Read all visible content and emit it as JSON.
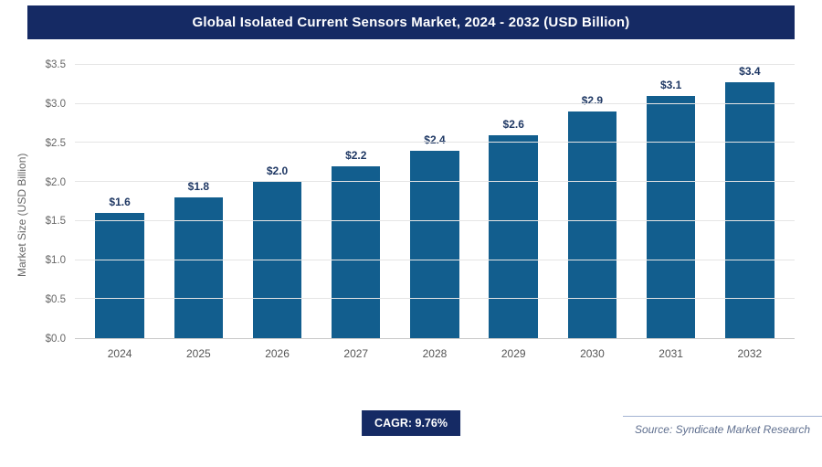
{
  "header": {
    "title": "Global Isolated Current Sensors Market, 2024 - 2032 (USD Billion)"
  },
  "chart_data": {
    "type": "bar",
    "title": "Global Isolated Current Sensors Market, 2024 - 2032 (USD Billion)",
    "categories": [
      "2024",
      "2025",
      "2026",
      "2027",
      "2028",
      "2029",
      "2030",
      "2031",
      "2032"
    ],
    "values": [
      1.6,
      1.8,
      2.0,
      2.2,
      2.4,
      2.6,
      2.9,
      3.1,
      3.4
    ],
    "value_labels": [
      "$1.6",
      "$1.8",
      "$2.0",
      "$2.2",
      "$2.4",
      "$2.6",
      "$2.9",
      "$3.1",
      "$3.4"
    ],
    "xlabel": "",
    "ylabel": "Market Size (USD Billion)",
    "ylim": [
      0,
      3.5
    ],
    "ytick_step": 0.5,
    "yticks": [
      "$0.0",
      "$0.5",
      "$1.0",
      "$1.5",
      "$2.0",
      "$2.5",
      "$3.0",
      "$3.5"
    ],
    "grid": true,
    "legend": false,
    "bar_color": "#125e8e",
    "label_color": "#1f3864"
  },
  "footer": {
    "cagr_label": "CAGR: 9.76%",
    "source": "Source: Syndicate Market Research"
  }
}
